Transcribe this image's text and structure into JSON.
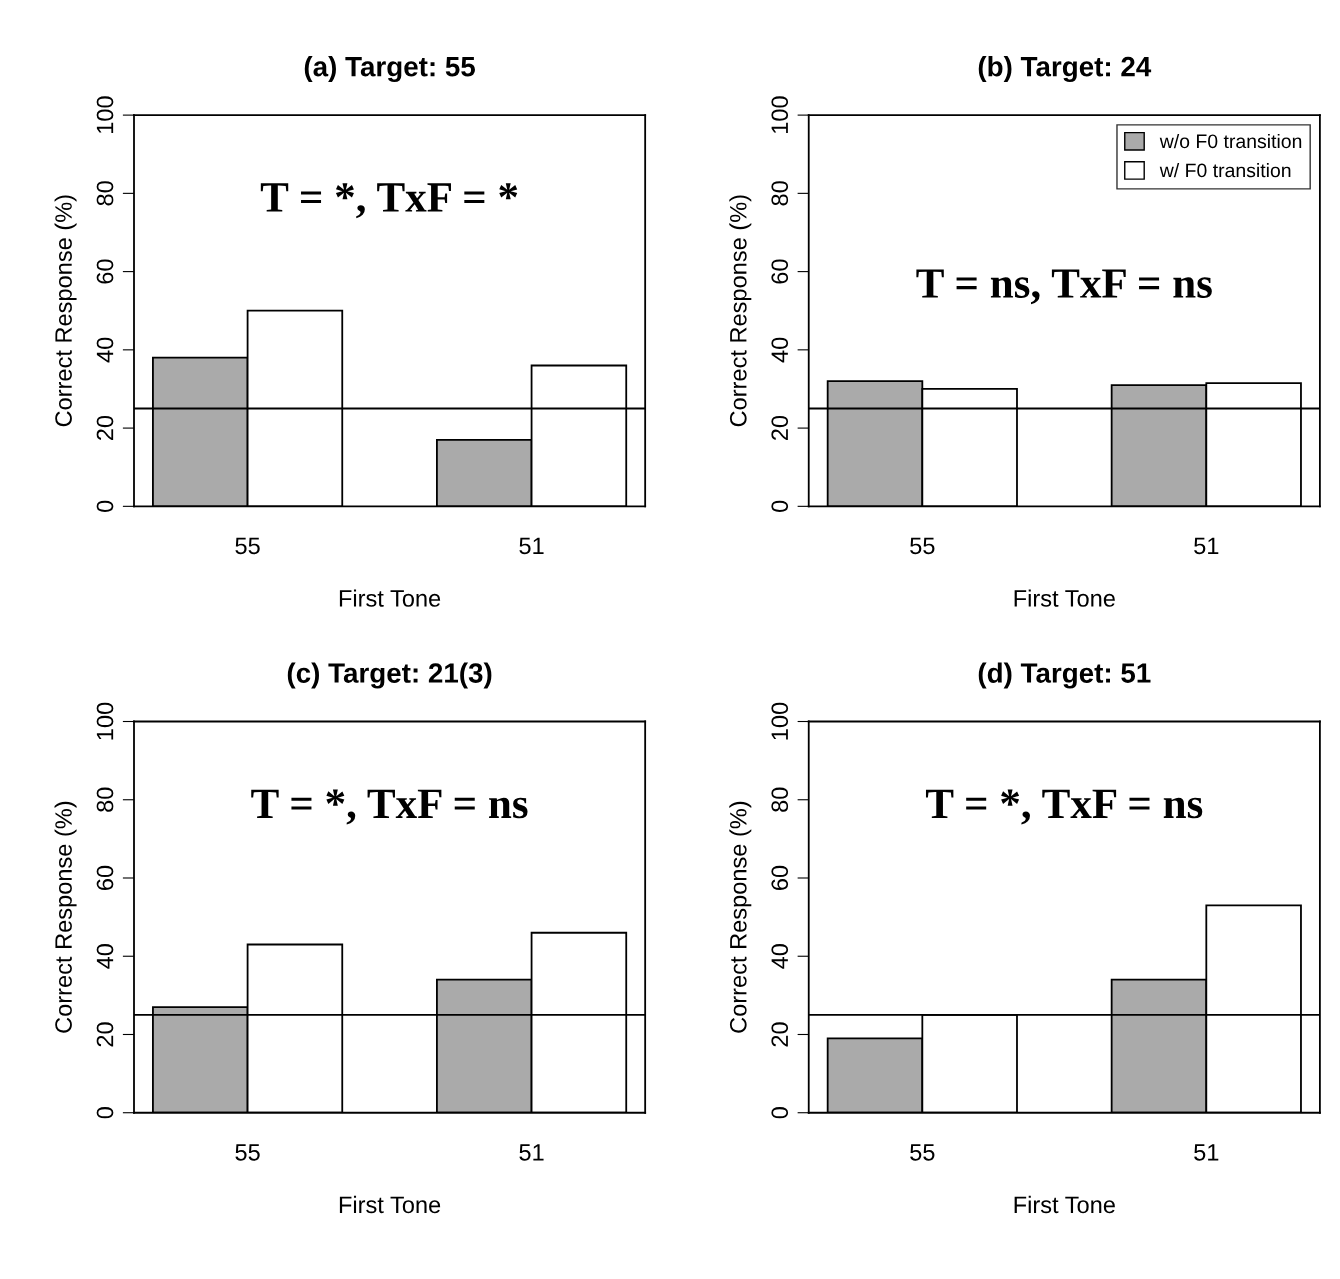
{
  "chart_data": [
    {
      "type": "bar",
      "title": "(a) Target: 55",
      "xlabel": "First Tone",
      "ylabel": "Correct Response (%)",
      "categories": [
        "55",
        "51"
      ],
      "series": [
        {
          "color": "#aaaaaa",
          "values": [
            38,
            17
          ]
        },
        {
          "color": "#ffffff",
          "values": [
            50,
            36
          ]
        }
      ],
      "ylim": [
        0,
        100
      ],
      "yticks": [
        0,
        20,
        40,
        60,
        80,
        100
      ],
      "ref_lines": [
        {
          "axis": "y",
          "value": 25,
          "color": "#000000"
        }
      ],
      "annotations": [
        "T = *, TxF = *"
      ],
      "grid": false,
      "legend": false
    },
    {
      "type": "bar",
      "title": "(b) Target: 24",
      "xlabel": "First Tone",
      "ylabel": "Correct Response (%)",
      "categories": [
        "55",
        "51"
      ],
      "series": [
        {
          "name": "w/o F0 transition",
          "color": "#aaaaaa",
          "values": [
            32,
            31
          ]
        },
        {
          "name": "w/ F0 transition",
          "color": "#ffffff",
          "values": [
            30,
            31.5
          ]
        }
      ],
      "ylim": [
        0,
        100
      ],
      "yticks": [
        0,
        20,
        40,
        60,
        80,
        100
      ],
      "ref_lines": [
        {
          "axis": "y",
          "value": 25,
          "color": "#000000"
        }
      ],
      "annotations": [
        "T = ns, TxF = ns"
      ],
      "grid": false,
      "legend": "top right"
    },
    {
      "type": "bar",
      "title": "(c) Target: 21(3)",
      "xlabel": "First Tone",
      "ylabel": "Correct Response (%)",
      "categories": [
        "55",
        "51"
      ],
      "series": [
        {
          "color": "#aaaaaa",
          "values": [
            27,
            34
          ]
        },
        {
          "color": "#ffffff",
          "values": [
            43,
            46
          ]
        }
      ],
      "ylim": [
        0,
        100
      ],
      "yticks": [
        0,
        20,
        40,
        60,
        80,
        100
      ],
      "ref_lines": [
        {
          "axis": "y",
          "value": 25,
          "color": "#000000"
        }
      ],
      "annotations": [
        "T = *, TxF = ns"
      ],
      "grid": false,
      "legend": false
    },
    {
      "type": "bar",
      "title": "(d) Target: 51",
      "xlabel": "First Tone",
      "ylabel": "Correct Response (%)",
      "categories": [
        "55",
        "51"
      ],
      "series": [
        {
          "color": "#aaaaaa",
          "values": [
            19,
            34
          ]
        },
        {
          "color": "#ffffff",
          "values": [
            25,
            53
          ]
        }
      ],
      "ylim": [
        0,
        100
      ],
      "yticks": [
        0,
        20,
        40,
        60,
        80,
        100
      ],
      "ref_lines": [
        {
          "axis": "y",
          "value": 25,
          "color": "#000000"
        }
      ],
      "annotations": [
        "T = *, TxF = ns"
      ],
      "grid": false,
      "legend": false
    }
  ]
}
